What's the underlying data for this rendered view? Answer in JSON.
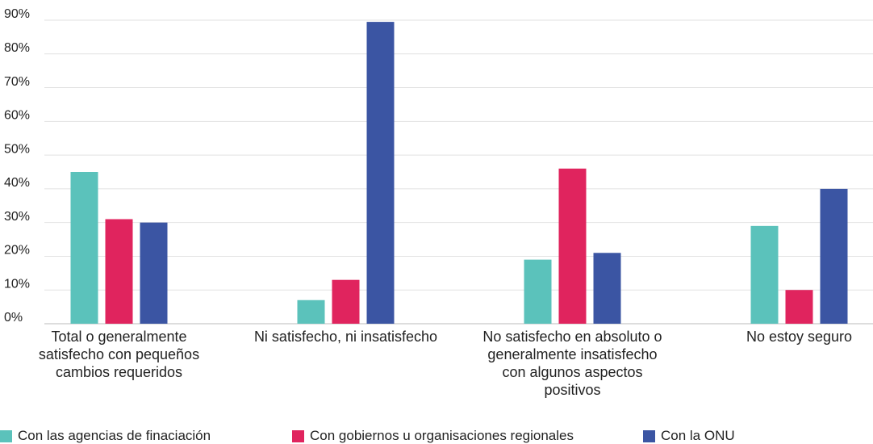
{
  "chart_data": {
    "type": "bar",
    "categories": [
      "Total o generalmente satisfecho con pequeños cambios requeridos",
      "Ni satisfecho, ni insatisfecho",
      "No satisfecho en absoluto o generalmente insatisfecho con algunos aspectos positivos",
      "No estoy seguro"
    ],
    "series": [
      {
        "name": "Con las agencias de finaciación",
        "color": "#5bc2bb",
        "values": [
          45,
          7,
          19,
          29
        ]
      },
      {
        "name": "Con gobiernos u organisaciones regionales",
        "color": "#e0245e",
        "values": [
          31,
          13,
          46,
          10
        ]
      },
      {
        "name": "Con la ONU",
        "color": "#3b55a3",
        "values": [
          30,
          89.5,
          21,
          40
        ]
      }
    ],
    "ylim": [
      0,
      90
    ],
    "yticks": [
      {
        "value": 0,
        "label": "0%"
      },
      {
        "value": 10,
        "label": "10%"
      },
      {
        "value": 20,
        "label": "20%"
      },
      {
        "value": 30,
        "label": "30%"
      },
      {
        "value": 40,
        "label": "40%"
      },
      {
        "value": 50,
        "label": "50%"
      },
      {
        "value": 60,
        "label": "60%"
      },
      {
        "value": 70,
        "label": "70%"
      },
      {
        "value": 80,
        "label": "80%"
      },
      {
        "value": 90,
        "label": "90%"
      }
    ],
    "grid": true,
    "legend": "bottom"
  }
}
